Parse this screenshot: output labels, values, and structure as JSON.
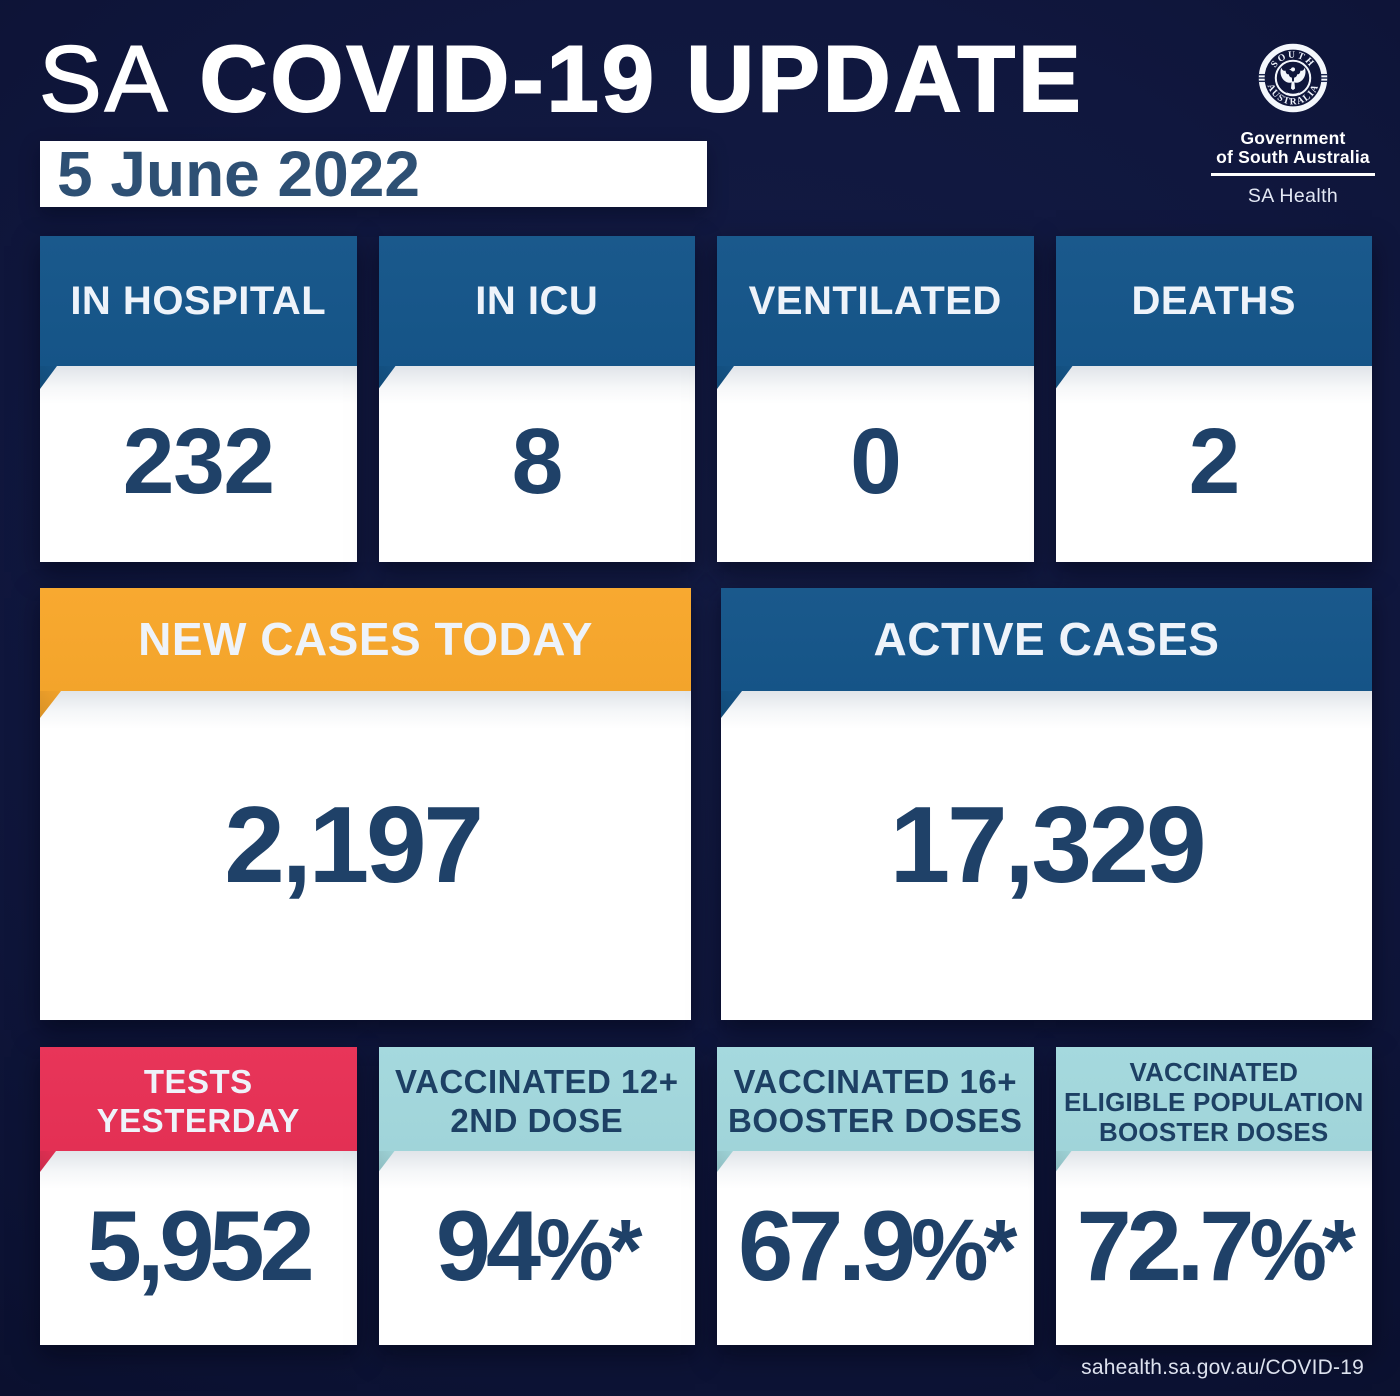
{
  "colors": {
    "background": "#121b41",
    "panel_blue": "#15568a",
    "panel_orange": "#f8a72c",
    "panel_red": "#e83156",
    "panel_teal": "#a3d8dd",
    "value_navy": "#1f4168",
    "date_navy": "#2e5074",
    "label_light": "#eef3fa",
    "label_navy": "#1d4064",
    "card_white": "#ffffff"
  },
  "header": {
    "title_prefix": "SA",
    "title_rest": "COVID-19 UPDATE",
    "date": "5 June 2022"
  },
  "logo": {
    "seal_top": "SOUTH",
    "seal_bottom": "AUSTRALIA",
    "line1": "Government",
    "line2": "of South Australia",
    "department": "SA Health"
  },
  "rows": [
    {
      "id": "hospital-stats",
      "cards": [
        {
          "id": "in-hospital",
          "label_lines": [
            "IN HOSPITAL"
          ],
          "value": "232",
          "theme": "blue"
        },
        {
          "id": "in-icu",
          "label_lines": [
            "IN ICU"
          ],
          "value": "8",
          "theme": "blue"
        },
        {
          "id": "ventilated",
          "label_lines": [
            "VENTILATED"
          ],
          "value": "0",
          "theme": "blue"
        },
        {
          "id": "deaths",
          "label_lines": [
            "DEATHS"
          ],
          "value": "2",
          "theme": "blue"
        }
      ]
    },
    {
      "id": "case-stats",
      "cards": [
        {
          "id": "new-cases-today",
          "label_lines": [
            "NEW CASES TODAY"
          ],
          "value": "2,197",
          "theme": "orange"
        },
        {
          "id": "active-cases",
          "label_lines": [
            "ACTIVE CASES"
          ],
          "value": "17,329",
          "theme": "blue"
        }
      ]
    },
    {
      "id": "tests-vaccination-stats",
      "cards": [
        {
          "id": "tests-yesterday",
          "label_lines": [
            "TESTS",
            "YESTERDAY"
          ],
          "value": "5,952",
          "theme": "red"
        },
        {
          "id": "vaccinated-12-plus-2nd-dose",
          "label_lines": [
            "VACCINATED 12+",
            "2ND DOSE"
          ],
          "value": "94%*",
          "theme": "teal"
        },
        {
          "id": "vaccinated-16-plus-booster-doses",
          "label_lines": [
            "VACCINATED 16+",
            "BOOSTER DOSES"
          ],
          "value": "67.9%*",
          "theme": "teal"
        },
        {
          "id": "vaccinated-eligible-population-booster-doses",
          "label_lines": [
            "VACCINATED",
            "ELIGIBLE POPULATION",
            "BOOSTER DOSES"
          ],
          "value": "72.7%*",
          "theme": "teal"
        }
      ]
    }
  ],
  "footer": {
    "url": "sahealth.sa.gov.au/COVID-19"
  }
}
